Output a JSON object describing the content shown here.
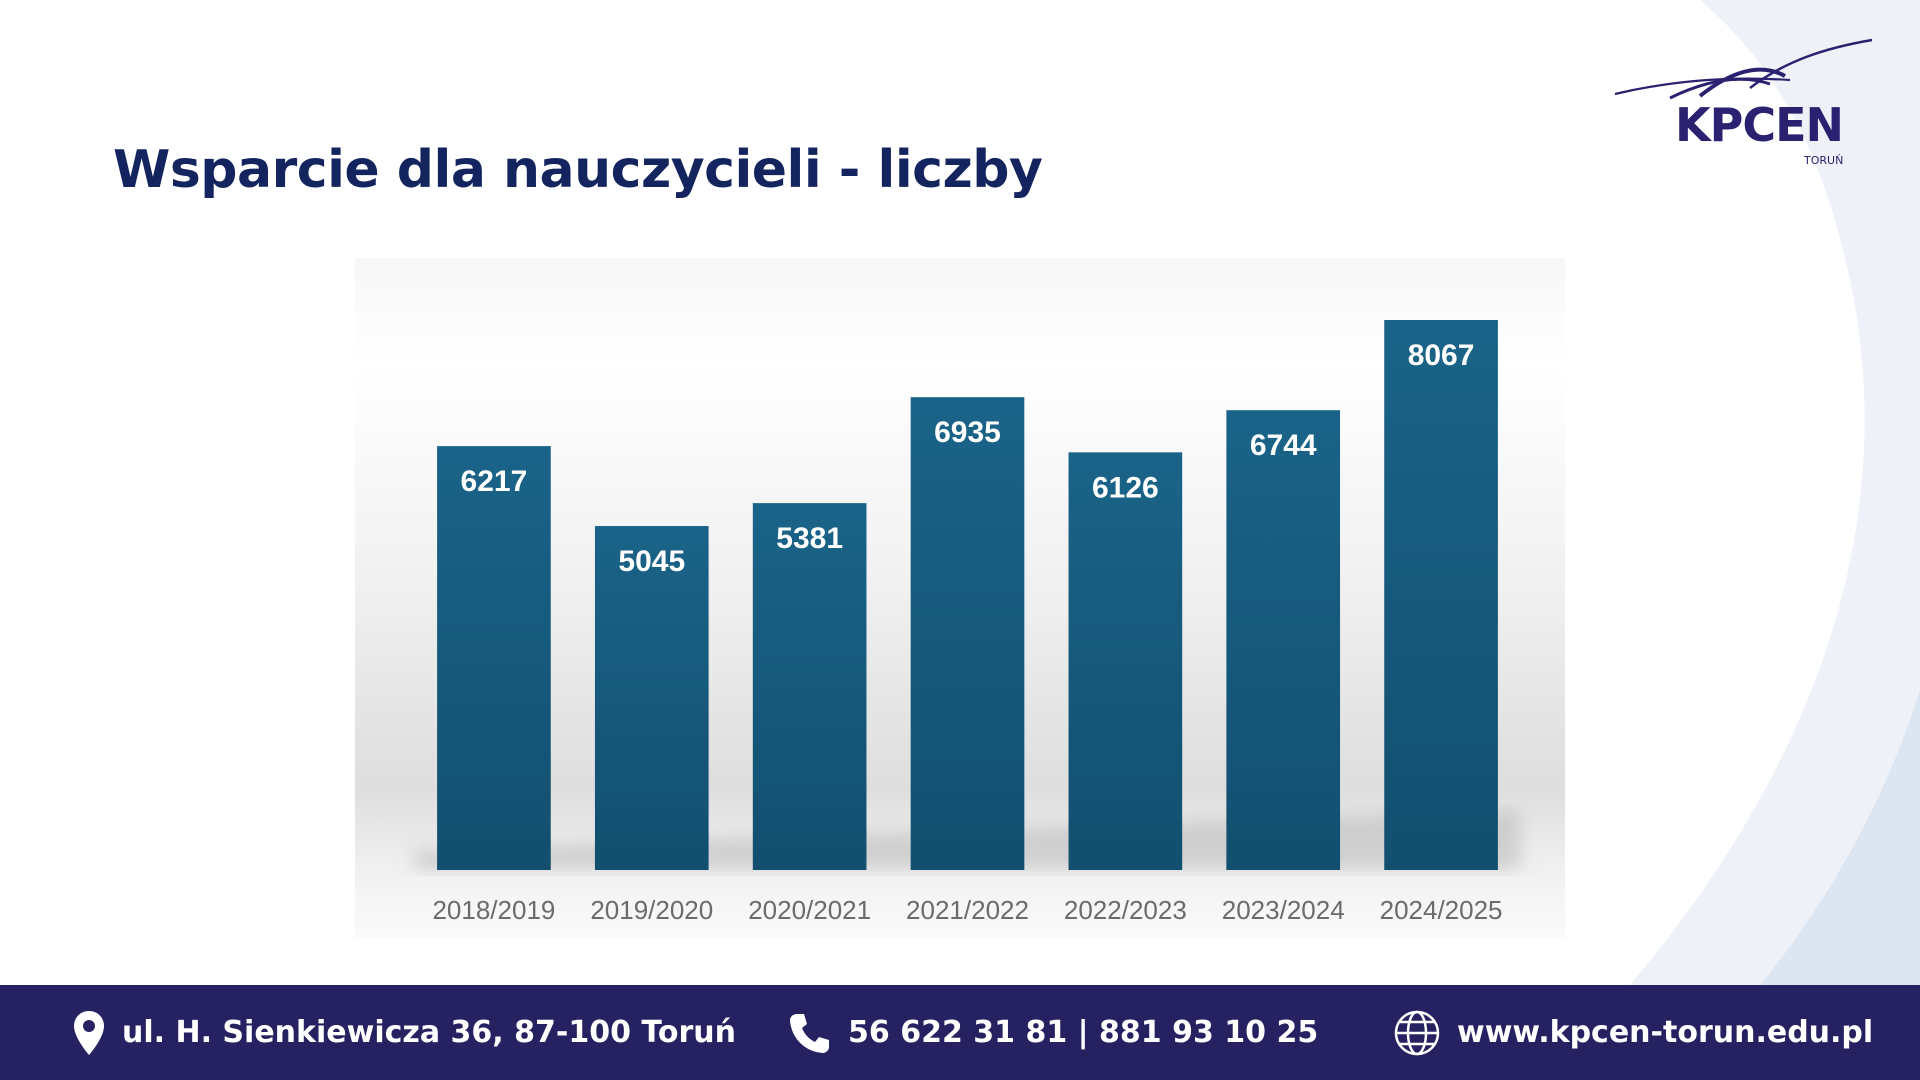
{
  "title": "Wsparcie dla nauczycieli - liczby",
  "logo": {
    "name": "KPCEN",
    "city": "TORUŃ"
  },
  "colors": {
    "bar": "#175b7e",
    "title": "#13245f",
    "footer": "#262262",
    "label": "#ffffff",
    "tick": "#6b6b6b"
  },
  "chart_data": {
    "type": "bar",
    "categories": [
      "2018/2019",
      "2019/2020",
      "2020/2021",
      "2021/2022",
      "2022/2023",
      "2023/2024",
      "2024/2025"
    ],
    "values": [
      6217,
      5045,
      5381,
      6935,
      6126,
      6744,
      8067
    ],
    "title": "",
    "xlabel": "",
    "ylabel": "",
    "ylim": [
      0,
      8067
    ],
    "grid": false,
    "data_labels": true
  },
  "footer": {
    "address": "ul. H. Sienkiewicza 36, 87-100 Toruń",
    "address_icon": "location-pin-icon",
    "phone": "56 622 31 81 | 881 93 10 25",
    "phone_icon": "phone-icon",
    "website": "www.kpcen-torun.edu.pl",
    "website_icon": "globe-icon"
  }
}
